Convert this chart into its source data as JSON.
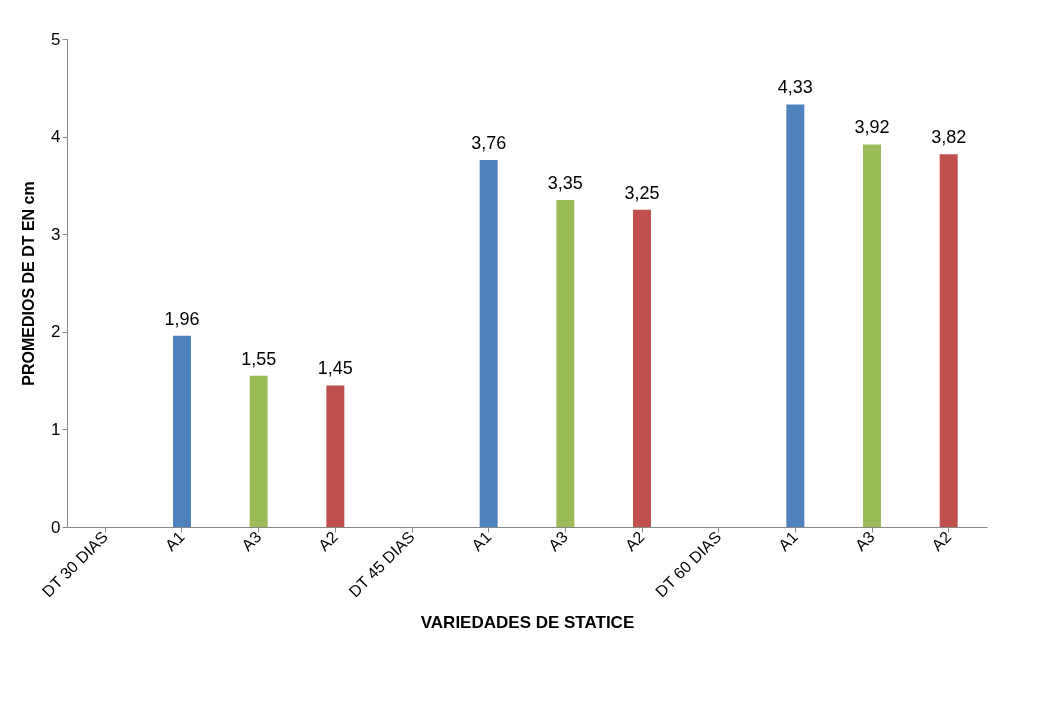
{
  "chart_data": {
    "type": "bar",
    "xlabel": "VARIEDADES DE STATICE",
    "ylabel": "PROMEDIOS DE DT EN cm",
    "categories": [
      "DT 30 DIAS",
      "A1",
      "A3",
      "A2",
      "DT 45 DIAS",
      "A1",
      "A3",
      "A2",
      "DT 60 DIAS",
      "A1",
      "A3",
      "A2"
    ],
    "values": [
      null,
      1.96,
      1.55,
      1.45,
      null,
      3.76,
      3.35,
      3.25,
      null,
      4.33,
      3.92,
      3.82
    ],
    "colors": [
      null,
      "#4f81bd",
      "#9bbb59",
      "#c0504d",
      null,
      "#4f81bd",
      "#9bbb59",
      "#c0504d",
      null,
      "#4f81bd",
      "#9bbb59",
      "#c0504d"
    ],
    "value_labels": [
      null,
      "1,96",
      "1,55",
      "1,45",
      null,
      "3,76",
      "3,35",
      "3,25",
      null,
      "4,33",
      "3,92",
      "3,82"
    ],
    "ylim": [
      0,
      5
    ],
    "yticks": [
      0,
      1,
      2,
      3,
      4,
      5
    ],
    "grid": false
  }
}
